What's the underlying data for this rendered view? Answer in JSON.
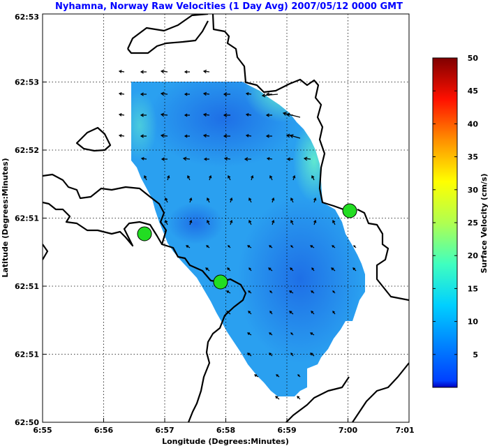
{
  "chart_data": {
    "type": "heatmap",
    "title": "Nyhamna, Norway Raw Velocities (1 Day Avg) 2007/05/12 0000 GMT",
    "xlabel": "Longitude (Degrees:Minutes)",
    "ylabel": "Latitude (Degrees:Minutes)",
    "x_ticks": [
      "6:55",
      "6:56",
      "6:57",
      "6:58",
      "6:59",
      "7:00",
      "7:01"
    ],
    "y_ticks": [
      "62:50",
      "62:51",
      "62:51",
      "62:51",
      "62:52",
      "62:53",
      "62:53"
    ],
    "xlim": [
      "6:55",
      "7:01"
    ],
    "grid": true,
    "colorbar": {
      "label": "Surface Velocity (cm/s)",
      "ticks": [
        "5",
        "10",
        "15",
        "20",
        "25",
        "30",
        "35",
        "40",
        "45",
        "50"
      ],
      "range": [
        0,
        50
      ],
      "colormap": "jet"
    },
    "stations": [
      {
        "lon": "6:56.7",
        "lat": "62:51.3",
        "color": "#22dd22"
      },
      {
        "lon": "6:57.9",
        "lat": "62:51.0",
        "color": "#22dd22"
      },
      {
        "lon": "7:00.0",
        "lat": "62:51.5",
        "color": "#22dd22"
      }
    ],
    "field_speed_range_cm_s": [
      3,
      14
    ]
  }
}
